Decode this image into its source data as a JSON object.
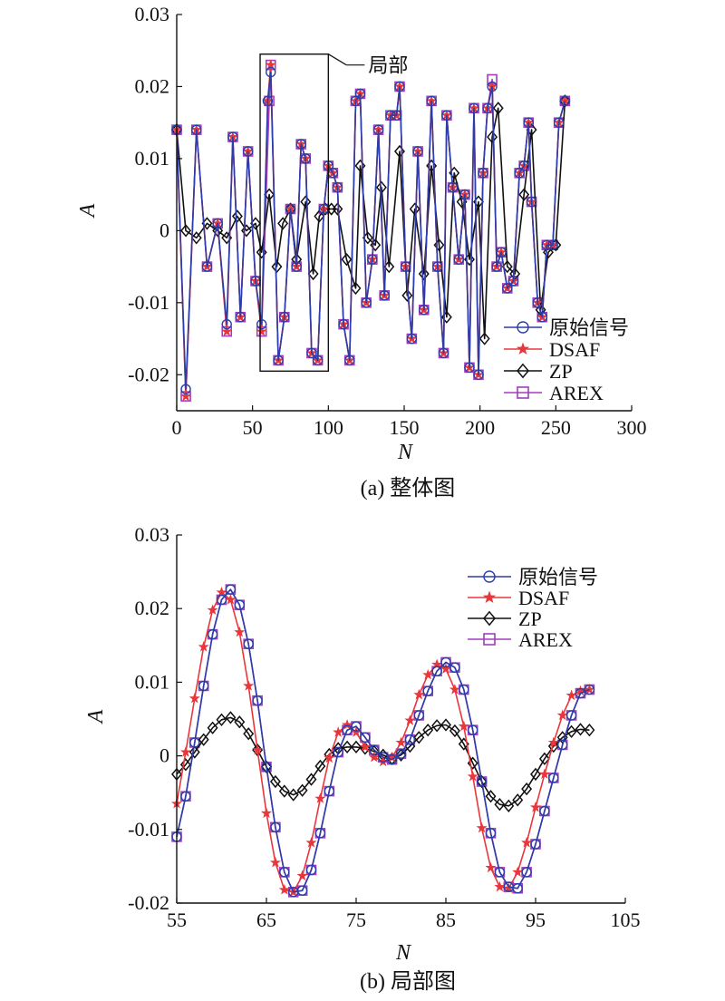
{
  "chart_data": [
    {
      "type": "line",
      "caption": "(a) 整体图",
      "xlabel": "N",
      "ylabel": "A",
      "xlim": [
        0,
        300
      ],
      "ylim": [
        -0.025,
        0.03
      ],
      "xticks": [
        0,
        50,
        100,
        150,
        200,
        250,
        300
      ],
      "yticks": [
        -0.02,
        -0.01,
        0,
        0.01,
        0.02,
        0.03
      ],
      "ytick_labels": [
        "-0.02",
        "-0.01",
        "0",
        "0.01",
        "0.02",
        "0.03"
      ],
      "legend_position": "bottom-right",
      "annotation": {
        "label": "局部",
        "box_x": [
          55,
          100
        ],
        "box_y": [
          -0.0195,
          0.0245
        ]
      },
      "series": [
        {
          "name": "原始信号",
          "color": "#2b3da8",
          "marker": "circle",
          "x": [
            0,
            6,
            13,
            20,
            27,
            33,
            37,
            42,
            47,
            52,
            56,
            60,
            62,
            67,
            71,
            75,
            79,
            82,
            85,
            89,
            93,
            97,
            100,
            103,
            106,
            110,
            114,
            118,
            121,
            125,
            129,
            133,
            137,
            141,
            145,
            147,
            151,
            155,
            159,
            163,
            168,
            172,
            176,
            178,
            182,
            186,
            190,
            193,
            196,
            199,
            202,
            205,
            208,
            211,
            214,
            218,
            222,
            226,
            229,
            232,
            234,
            238,
            241,
            244,
            248,
            252,
            256
          ],
          "y": [
            0.014,
            -0.022,
            0.014,
            -0.005,
            0.001,
            -0.013,
            0.013,
            -0.012,
            0.011,
            -0.007,
            -0.013,
            0.018,
            0.022,
            -0.018,
            -0.012,
            0.003,
            -0.005,
            0.012,
            0.01,
            -0.017,
            -0.018,
            0.003,
            0.009,
            0.008,
            0.006,
            -0.013,
            -0.018,
            0.018,
            0.019,
            -0.01,
            -0.004,
            0.014,
            -0.009,
            0.016,
            0.016,
            0.02,
            -0.005,
            -0.015,
            0.011,
            -0.011,
            0.018,
            -0.005,
            -0.017,
            0.016,
            0.006,
            -0.004,
            0.005,
            -0.019,
            0.017,
            -0.02,
            0.008,
            0.017,
            0.02,
            -0.005,
            -0.003,
            -0.008,
            -0.007,
            0.008,
            0.009,
            0.015,
            0.004,
            -0.01,
            -0.012,
            -0.002,
            -0.002,
            0.015,
            0.018
          ]
        },
        {
          "name": "DSAF",
          "color": "#e8373c",
          "marker": "star",
          "x": [
            0,
            6,
            13,
            20,
            27,
            33,
            37,
            42,
            47,
            52,
            56,
            60,
            62,
            67,
            71,
            75,
            79,
            82,
            85,
            89,
            93,
            97,
            100,
            103,
            106,
            110,
            114,
            118,
            121,
            125,
            129,
            133,
            137,
            141,
            145,
            147,
            151,
            155,
            159,
            163,
            168,
            172,
            176,
            178,
            182,
            186,
            190,
            193,
            196,
            199,
            202,
            205,
            208,
            211,
            214,
            218,
            222,
            226,
            229,
            232,
            234,
            238,
            241,
            244,
            248,
            252,
            256
          ],
          "y": [
            0.014,
            -0.023,
            0.014,
            -0.005,
            0.001,
            -0.014,
            0.013,
            -0.012,
            0.011,
            -0.007,
            -0.014,
            0.018,
            0.023,
            -0.018,
            -0.012,
            0.003,
            -0.005,
            0.012,
            0.01,
            -0.017,
            -0.018,
            0.003,
            0.009,
            0.008,
            0.006,
            -0.013,
            -0.018,
            0.018,
            0.019,
            -0.01,
            -0.004,
            0.014,
            -0.009,
            0.016,
            0.016,
            0.02,
            -0.005,
            -0.015,
            0.011,
            -0.011,
            0.018,
            -0.005,
            -0.017,
            0.016,
            0.006,
            -0.004,
            0.005,
            -0.019,
            0.017,
            -0.02,
            0.008,
            0.017,
            0.02,
            -0.005,
            -0.003,
            -0.008,
            -0.007,
            0.008,
            0.009,
            0.015,
            0.004,
            -0.01,
            -0.012,
            -0.002,
            -0.002,
            0.015,
            0.018
          ]
        },
        {
          "name": "ZP",
          "color": "#111111",
          "marker": "diamond",
          "x": [
            0,
            6,
            13,
            20,
            27,
            33,
            40,
            46,
            52,
            56,
            61,
            66,
            70,
            75,
            79,
            85,
            90,
            94,
            98,
            102,
            106,
            112,
            118,
            121,
            126,
            131,
            135,
            140,
            147,
            152,
            157,
            163,
            168,
            173,
            178,
            183,
            188,
            193,
            199,
            203,
            208,
            212,
            218,
            223,
            229,
            234,
            240,
            245,
            250,
            256
          ],
          "y": [
            0.014,
            0,
            -0.001,
            0.001,
            0,
            -0.001,
            0.002,
            0,
            0.001,
            -0.003,
            0.005,
            -0.005,
            0.001,
            0.003,
            -0.004,
            0.004,
            -0.006,
            0.002,
            0.003,
            0.003,
            0.003,
            -0.004,
            -0.008,
            0.009,
            -0.001,
            -0.002,
            0.006,
            -0.005,
            0.011,
            -0.009,
            0.003,
            -0.006,
            0.009,
            -0.002,
            -0.012,
            0.008,
            0.004,
            -0.004,
            0.004,
            -0.015,
            0.013,
            0.017,
            -0.005,
            -0.006,
            0.005,
            0.014,
            -0.011,
            -0.003,
            -0.002,
            0.018
          ]
        },
        {
          "name": "AREX",
          "color": "#a43bc0",
          "marker": "square",
          "x": [
            0,
            6,
            13,
            20,
            27,
            33,
            37,
            42,
            47,
            52,
            56,
            61,
            62,
            67,
            71,
            75,
            79,
            82,
            85,
            89,
            93,
            97,
            100,
            103,
            106,
            110,
            114,
            118,
            121,
            125,
            129,
            133,
            137,
            141,
            145,
            147,
            151,
            155,
            159,
            163,
            168,
            172,
            176,
            178,
            182,
            186,
            190,
            193,
            196,
            199,
            202,
            205,
            208,
            211,
            214,
            218,
            222,
            226,
            229,
            232,
            234,
            238,
            241,
            244,
            248,
            252,
            256
          ],
          "y": [
            0.014,
            -0.023,
            0.014,
            -0.005,
            0.001,
            -0.014,
            0.013,
            -0.012,
            0.011,
            -0.007,
            -0.014,
            0.018,
            0.023,
            -0.018,
            -0.012,
            0.003,
            -0.005,
            0.012,
            0.01,
            -0.017,
            -0.018,
            0.003,
            0.009,
            0.008,
            0.006,
            -0.013,
            -0.018,
            0.018,
            0.019,
            -0.01,
            -0.004,
            0.014,
            -0.009,
            0.016,
            0.016,
            0.02,
            -0.005,
            -0.015,
            0.011,
            -0.011,
            0.018,
            -0.005,
            -0.017,
            0.016,
            0.006,
            -0.004,
            0.005,
            -0.019,
            0.017,
            -0.02,
            0.008,
            0.017,
            0.021,
            -0.005,
            -0.003,
            -0.008,
            -0.007,
            0.008,
            0.009,
            0.015,
            0.004,
            -0.01,
            -0.012,
            -0.002,
            -0.002,
            0.015,
            0.018
          ]
        }
      ]
    },
    {
      "type": "line",
      "caption": "(b) 局部图",
      "xlabel": "N",
      "ylabel": "A",
      "xlim": [
        55,
        105
      ],
      "ylim": [
        -0.02,
        0.03
      ],
      "xticks": [
        55,
        65,
        75,
        85,
        95,
        105
      ],
      "yticks": [
        -0.02,
        -0.01,
        0,
        0.01,
        0.02,
        0.03
      ],
      "ytick_labels": [
        "-0.02",
        "-0.01",
        "0",
        "0.01",
        "0.02",
        "0.03"
      ],
      "legend_position": "top-right",
      "series": [
        {
          "name": "原始信号",
          "color": "#2b3da8",
          "marker": "circle",
          "x": [
            55,
            56,
            57,
            58,
            59,
            60,
            61,
            62,
            63,
            64,
            65,
            66,
            67,
            68,
            69,
            70,
            71,
            72,
            73,
            74,
            75,
            76,
            77,
            78,
            79,
            80,
            81,
            82,
            83,
            84,
            85,
            86,
            87,
            88,
            89,
            90,
            91,
            92,
            93,
            94,
            95,
            96,
            97,
            98,
            99,
            100,
            101
          ],
          "y": [
            -0.011,
            -0.0055,
            0.0018,
            0.0095,
            0.0165,
            0.0212,
            0.0226,
            0.0205,
            0.0152,
            0.0075,
            -0.0015,
            -0.0097,
            -0.0158,
            -0.0185,
            -0.0183,
            -0.0155,
            -0.0105,
            -0.0048,
            0.0005,
            0.0035,
            0.004,
            0.0025,
            0.0008,
            -0.0002,
            -0.0005,
            0.0003,
            0.0022,
            0.0055,
            0.0088,
            0.0115,
            0.0127,
            0.012,
            0.009,
            0.0035,
            -0.0035,
            -0.0105,
            -0.0158,
            -0.0178,
            -0.018,
            -0.0158,
            -0.012,
            -0.0075,
            -0.003,
            0.0015,
            0.0055,
            0.0085,
            0.009
          ]
        },
        {
          "name": "DSAF",
          "color": "#e8373c",
          "marker": "star",
          "x": [
            55,
            56,
            57,
            58,
            59,
            60,
            61,
            62,
            63,
            64,
            65,
            66,
            67,
            68,
            69,
            70,
            71,
            72,
            73,
            74,
            75,
            76,
            77,
            78,
            79,
            80,
            81,
            82,
            83,
            84,
            85,
            86,
            87,
            88,
            89,
            90,
            91,
            92,
            93,
            94,
            95,
            96,
            97,
            98,
            99,
            100,
            101
          ],
          "y": [
            -0.0065,
            0.0005,
            0.0078,
            0.0148,
            0.0198,
            0.0222,
            0.0212,
            0.0168,
            0.0095,
            0.0008,
            -0.0078,
            -0.0145,
            -0.0182,
            -0.0185,
            -0.0163,
            -0.0118,
            -0.0058,
            -0.0003,
            0.0032,
            0.0042,
            0.0032,
            0.0012,
            -0.0002,
            -0.0008,
            -0.0002,
            0.0018,
            0.0048,
            0.0083,
            0.011,
            0.0124,
            0.0118,
            0.009,
            0.004,
            -0.0028,
            -0.0098,
            -0.0152,
            -0.0178,
            -0.018,
            -0.0158,
            -0.0118,
            -0.007,
            -0.0025,
            0.0018,
            0.0055,
            0.0082,
            0.0088,
            0.009
          ]
        },
        {
          "name": "ZP",
          "color": "#111111",
          "marker": "diamond",
          "x": [
            55,
            56,
            57,
            58,
            59,
            60,
            61,
            62,
            63,
            64,
            65,
            66,
            67,
            68,
            69,
            70,
            71,
            72,
            73,
            74,
            75,
            76,
            77,
            78,
            79,
            80,
            81,
            82,
            83,
            84,
            85,
            86,
            87,
            88,
            89,
            90,
            91,
            92,
            93,
            94,
            95,
            96,
            97,
            98,
            99,
            100,
            101
          ],
          "y": [
            -0.0025,
            -0.0012,
            0.0005,
            0.0022,
            0.0038,
            0.0049,
            0.0052,
            0.0046,
            0.003,
            0.0008,
            -0.0015,
            -0.0035,
            -0.0048,
            -0.0053,
            -0.0047,
            -0.0032,
            -0.0014,
            0.0002,
            0.001,
            0.0012,
            0.0012,
            0.001,
            0.0006,
            0.0001,
            -0.0004,
            0.0001,
            0.0013,
            0.0025,
            0.0035,
            0.0041,
            0.0042,
            0.0034,
            0.0016,
            -0.001,
            -0.0035,
            -0.0055,
            -0.0066,
            -0.0068,
            -0.006,
            -0.0045,
            -0.0025,
            -0.0004,
            0.0013,
            0.0025,
            0.0033,
            0.0036,
            0.0035
          ]
        },
        {
          "name": "AREX",
          "color": "#a43bc0",
          "marker": "square",
          "x": [
            55,
            56,
            57,
            58,
            59,
            60,
            61,
            62,
            63,
            64,
            65,
            66,
            67,
            68,
            69,
            70,
            71,
            72,
            73,
            74,
            75,
            76,
            77,
            78,
            79,
            80,
            81,
            82,
            83,
            84,
            85,
            86,
            87,
            88,
            89,
            90,
            91,
            92,
            93,
            94,
            95,
            96,
            97,
            98,
            99,
            100,
            101
          ],
          "y": [
            -0.011,
            -0.0055,
            0.0018,
            0.0095,
            0.0165,
            0.0212,
            0.0226,
            0.0205,
            0.0152,
            0.0075,
            -0.0015,
            -0.0097,
            -0.0158,
            -0.0185,
            -0.0183,
            -0.0155,
            -0.0105,
            -0.0048,
            0.0005,
            0.0035,
            0.004,
            0.0025,
            0.0008,
            -0.0002,
            -0.0005,
            0.0003,
            0.0022,
            0.0055,
            0.0088,
            0.0115,
            0.0127,
            0.012,
            0.009,
            0.0035,
            -0.0035,
            -0.0105,
            -0.0158,
            -0.0178,
            -0.018,
            -0.0158,
            -0.012,
            -0.0075,
            -0.003,
            0.0015,
            0.0055,
            0.0085,
            0.009
          ]
        }
      ]
    }
  ]
}
